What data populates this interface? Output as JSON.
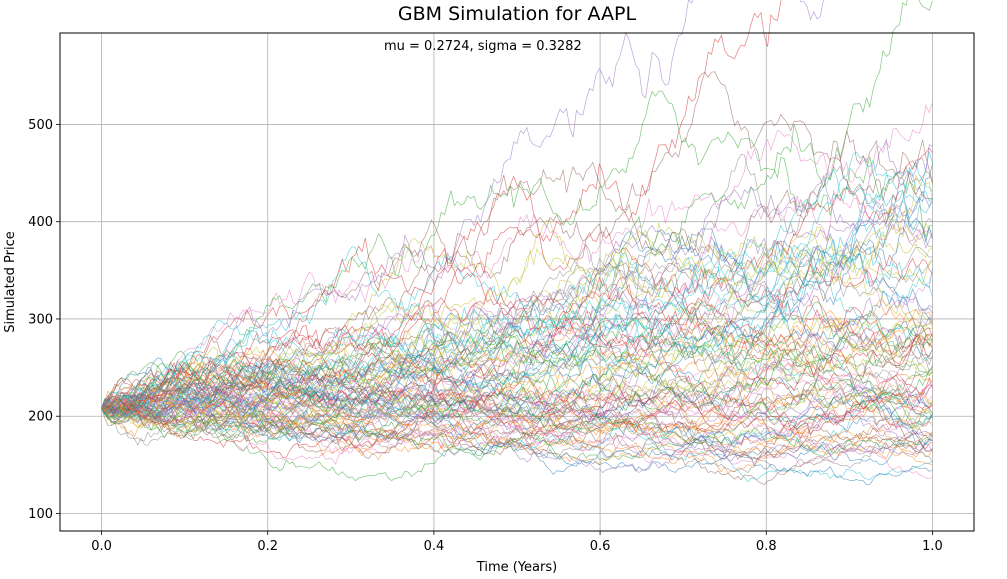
{
  "chart_data": {
    "type": "line",
    "title": "GBM Simulation for AAPL",
    "annotation": "mu = 0.2724, sigma = 0.3282",
    "xlabel": "Time (Years)",
    "ylabel": "Simulated Price",
    "xlim": [
      -0.05,
      1.05
    ],
    "ylim": [
      82,
      594
    ],
    "xticks": [
      0.0,
      0.2,
      0.4,
      0.6,
      0.8,
      1.0
    ],
    "xtick_labels": [
      "0.0",
      "0.2",
      "0.4",
      "0.6",
      "0.8",
      "1.0"
    ],
    "yticks": [
      100,
      200,
      300,
      400,
      500
    ],
    "ytick_labels": [
      "100",
      "200",
      "300",
      "400",
      "500"
    ],
    "grid": true,
    "legend": "none",
    "simulation": {
      "s0": 208,
      "mu": 0.2724,
      "sigma": 0.3282,
      "n_paths": 100,
      "n_steps": 252,
      "t_end": 1.0
    },
    "colors": [
      "#1f77b4",
      "#ff7f0e",
      "#2ca02c",
      "#d62728",
      "#9467bd",
      "#8c564b",
      "#e377c2",
      "#7f7f7f",
      "#bcbd22",
      "#17becf"
    ]
  }
}
